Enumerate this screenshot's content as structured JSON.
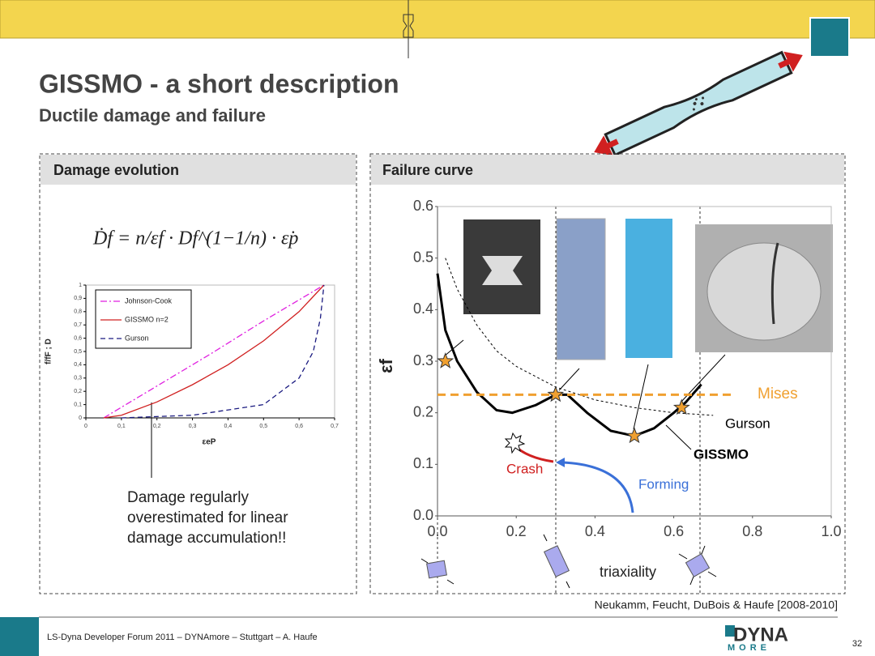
{
  "header": {
    "title": "GISSMO - a short description",
    "subtitle": "Ductile damage and failure"
  },
  "panels": {
    "left": {
      "title": "Damage evolution",
      "formula": "Ḋf = n/εf · Df^(1−1/n) · ε̇p",
      "note": [
        "Damage regularly",
        "overestimated for linear",
        "damage accumulation!!"
      ]
    },
    "right": {
      "title": "Failure curve",
      "citation": "Neukamm, Feucht, DuBois & Haufe [2008-2010]"
    }
  },
  "footer": {
    "text": "LS-Dyna Developer Forum 2011 – DYNAmore – Stuttgart  –  A. Haufe",
    "brand": "DYNA",
    "brand_sub": "MORE",
    "page": 32
  },
  "chart_data": [
    {
      "type": "line",
      "x_label": "εeP",
      "y_label": "f/fF ; D",
      "legend": "upper left",
      "xlim": [
        0,
        0.7
      ],
      "ylim": [
        0,
        1
      ],
      "xticks": [
        0,
        {
          "value": 0.1,
          "label": "0,1"
        },
        {
          "value": 0.2,
          "label": "0,2"
        },
        {
          "value": 0.3,
          "label": "0,3"
        },
        {
          "value": 0.4,
          "label": "0,4"
        },
        {
          "value": 0.5,
          "label": "0,5"
        },
        {
          "value": 0.6,
          "label": "0,6"
        },
        {
          "value": 0.7,
          "label": "0,7"
        }
      ],
      "yticks": [
        0,
        {
          "value": 0.1,
          "label": "0,1"
        },
        {
          "value": 0.2,
          "label": "0,2"
        },
        {
          "value": 0.3,
          "label": "0,3"
        },
        {
          "value": 0.4,
          "label": "0,4"
        },
        {
          "value": 0.5,
          "label": "0,5"
        },
        {
          "value": 0.6,
          "label": "0,6"
        },
        {
          "value": 0.7,
          "label": "0,7"
        },
        {
          "value": 0.8,
          "label": "0,8"
        },
        {
          "value": 0.9,
          "label": "0,9"
        },
        1
      ],
      "series": [
        {
          "name": "Johnson-Cook",
          "color": "#e020e0",
          "dash": "8 3 2 3",
          "x": [
            0.05,
            0.2,
            0.35,
            0.5,
            0.67
          ],
          "values": [
            0,
            0.24,
            0.48,
            0.73,
            1
          ]
        },
        {
          "name": "GISSMO n=2",
          "color": "#d02020",
          "x": [
            0.05,
            0.1,
            0.2,
            0.3,
            0.4,
            0.5,
            0.6,
            0.67
          ],
          "values": [
            0,
            0.02,
            0.12,
            0.25,
            0.4,
            0.58,
            0.8,
            1
          ]
        },
        {
          "name": "Gurson",
          "color": "#1a1a80",
          "dash": "6 4",
          "x": [
            0.1,
            0.3,
            0.5,
            0.6,
            0.64,
            0.66,
            0.67
          ],
          "values": [
            0,
            0.02,
            0.1,
            0.3,
            0.5,
            0.75,
            1
          ]
        }
      ]
    },
    {
      "type": "line",
      "x_label": "triaxiality",
      "y_label": "εf",
      "legend": "inline",
      "xlim": [
        0,
        1
      ],
      "ylim": [
        0,
        0.6
      ],
      "xticks": [
        {
          "value": 0,
          "label": "0.0"
        },
        0.2,
        0.4,
        0.6,
        0.8,
        {
          "value": 1,
          "label": "1.0"
        }
      ],
      "yticks": [
        {
          "value": 0,
          "label": "0.0"
        },
        0.1,
        0.2,
        0.3,
        0.4,
        0.5,
        0.6
      ],
      "series": [
        {
          "name": "GISSMO",
          "color": "#000000",
          "width": 3,
          "x": [
            0,
            0.02,
            0.05,
            0.1,
            0.15,
            0.19,
            0.25,
            0.3,
            0.33,
            0.38,
            0.44,
            0.5,
            0.55,
            0.6,
            0.63,
            0.67
          ],
          "values": [
            0.47,
            0.36,
            0.3,
            0.24,
            0.205,
            0.2,
            0.215,
            0.235,
            0.235,
            0.2,
            0.165,
            0.155,
            0.17,
            0.2,
            0.22,
            0.255
          ]
        },
        {
          "name": "Gurson",
          "color": "#000000",
          "width": 1,
          "dash": "3 3",
          "x": [
            0.02,
            0.05,
            0.1,
            0.15,
            0.2,
            0.3,
            0.4,
            0.5,
            0.6,
            0.7
          ],
          "values": [
            0.5,
            0.44,
            0.37,
            0.32,
            0.29,
            0.25,
            0.225,
            0.21,
            0.2,
            0.195
          ]
        },
        {
          "name": "Mises",
          "color": "#f0a030",
          "width": 3,
          "dash": "10 6",
          "x": [
            0,
            0.75
          ],
          "values": [
            0.235,
            0.235
          ]
        }
      ],
      "markers": {
        "color": "#f0a030",
        "x": [
          0.02,
          0.3,
          0.5,
          0.62
        ],
        "values": [
          0.3,
          0.235,
          0.155,
          0.21
        ]
      },
      "annotations": [
        "Crash",
        "Forming"
      ]
    }
  ]
}
